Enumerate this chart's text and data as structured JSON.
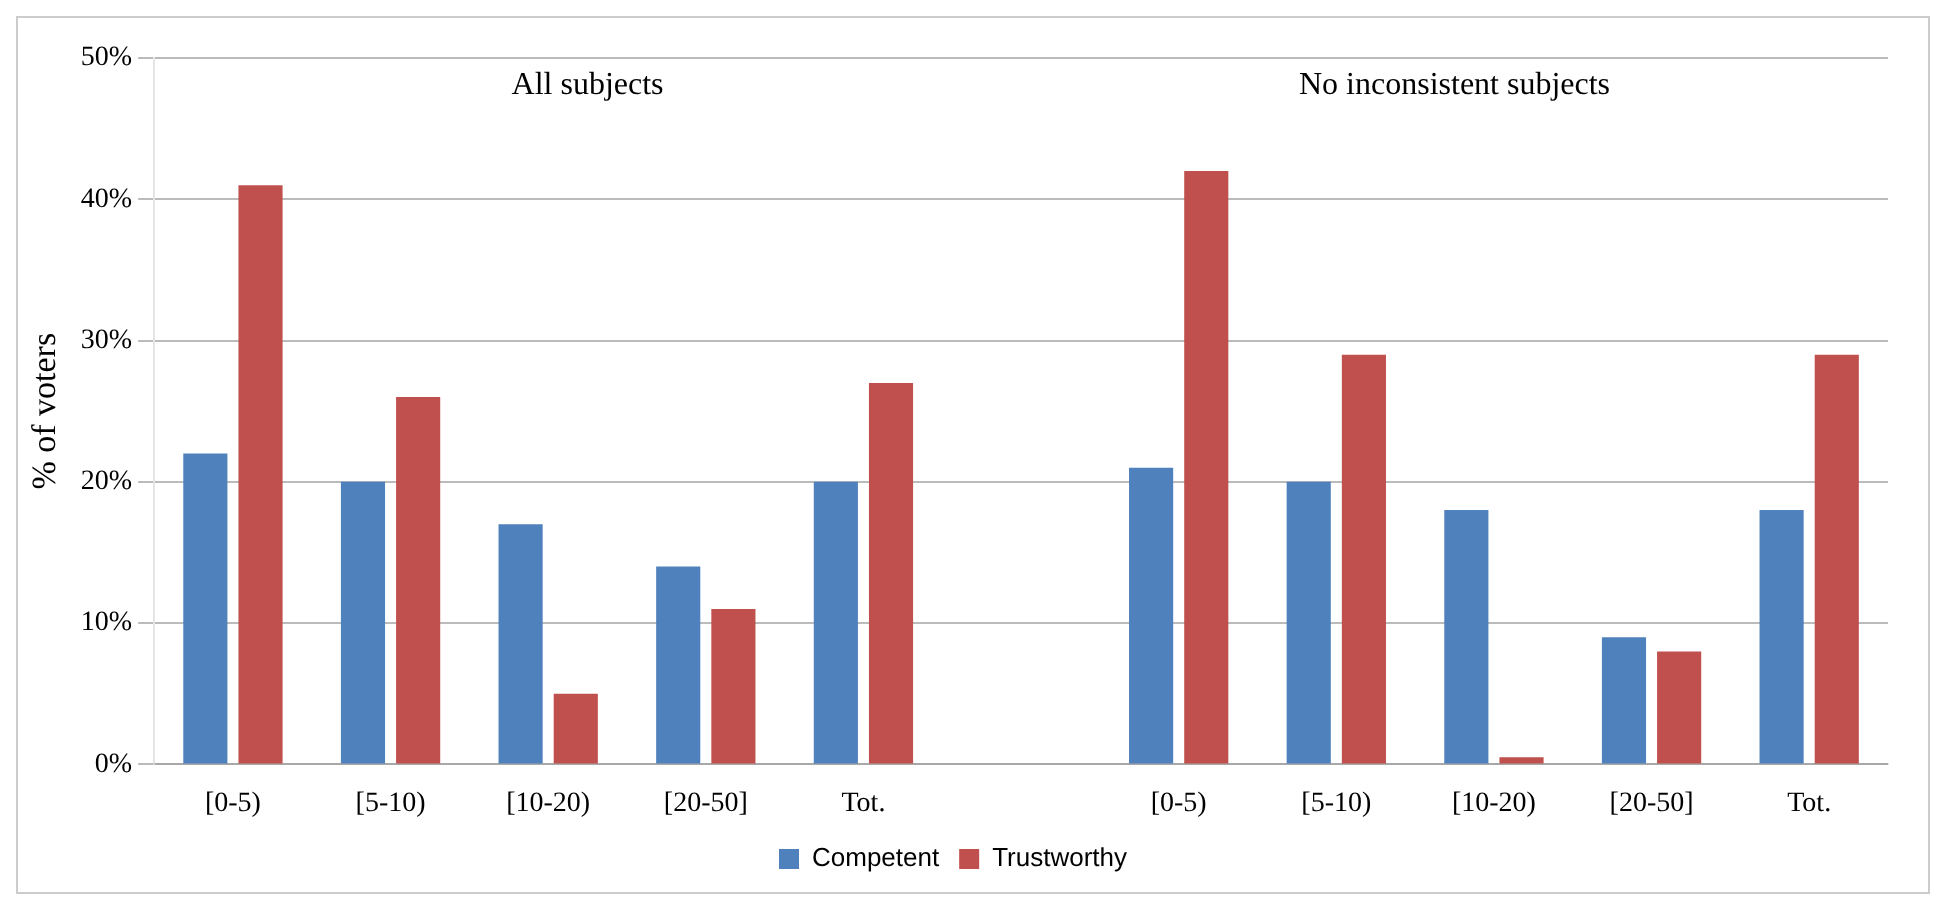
{
  "chart_data": {
    "type": "bar",
    "ylabel": "% of voters",
    "categories": [
      "[0-5)",
      "[5-10)",
      "[10-20)",
      "[20-50]",
      "Tot.",
      null,
      "[0-5)",
      "[5-10)",
      "[10-20)",
      "[20-50]",
      "Tot."
    ],
    "series": [
      {
        "name": "Competent",
        "color": "#4f81bd",
        "values": [
          22,
          20,
          17,
          14,
          20,
          null,
          21,
          20,
          18,
          9,
          18
        ]
      },
      {
        "name": "Trustworthy",
        "color": "#c0504d",
        "values": [
          41,
          26,
          5,
          11,
          27,
          null,
          42,
          29,
          0.5,
          8,
          29
        ]
      }
    ],
    "ylim": [
      0,
      50
    ],
    "yticks": [
      {
        "value": 0,
        "label": "0%"
      },
      {
        "value": 10,
        "label": "10%"
      },
      {
        "value": 20,
        "label": "20%"
      },
      {
        "value": 30,
        "label": "30%"
      },
      {
        "value": 40,
        "label": "40%"
      },
      {
        "value": 50,
        "label": "50%"
      }
    ],
    "annotations": [
      "All subjects",
      "No inconsistent subjects"
    ],
    "grid": "y",
    "legend": "bottom"
  }
}
